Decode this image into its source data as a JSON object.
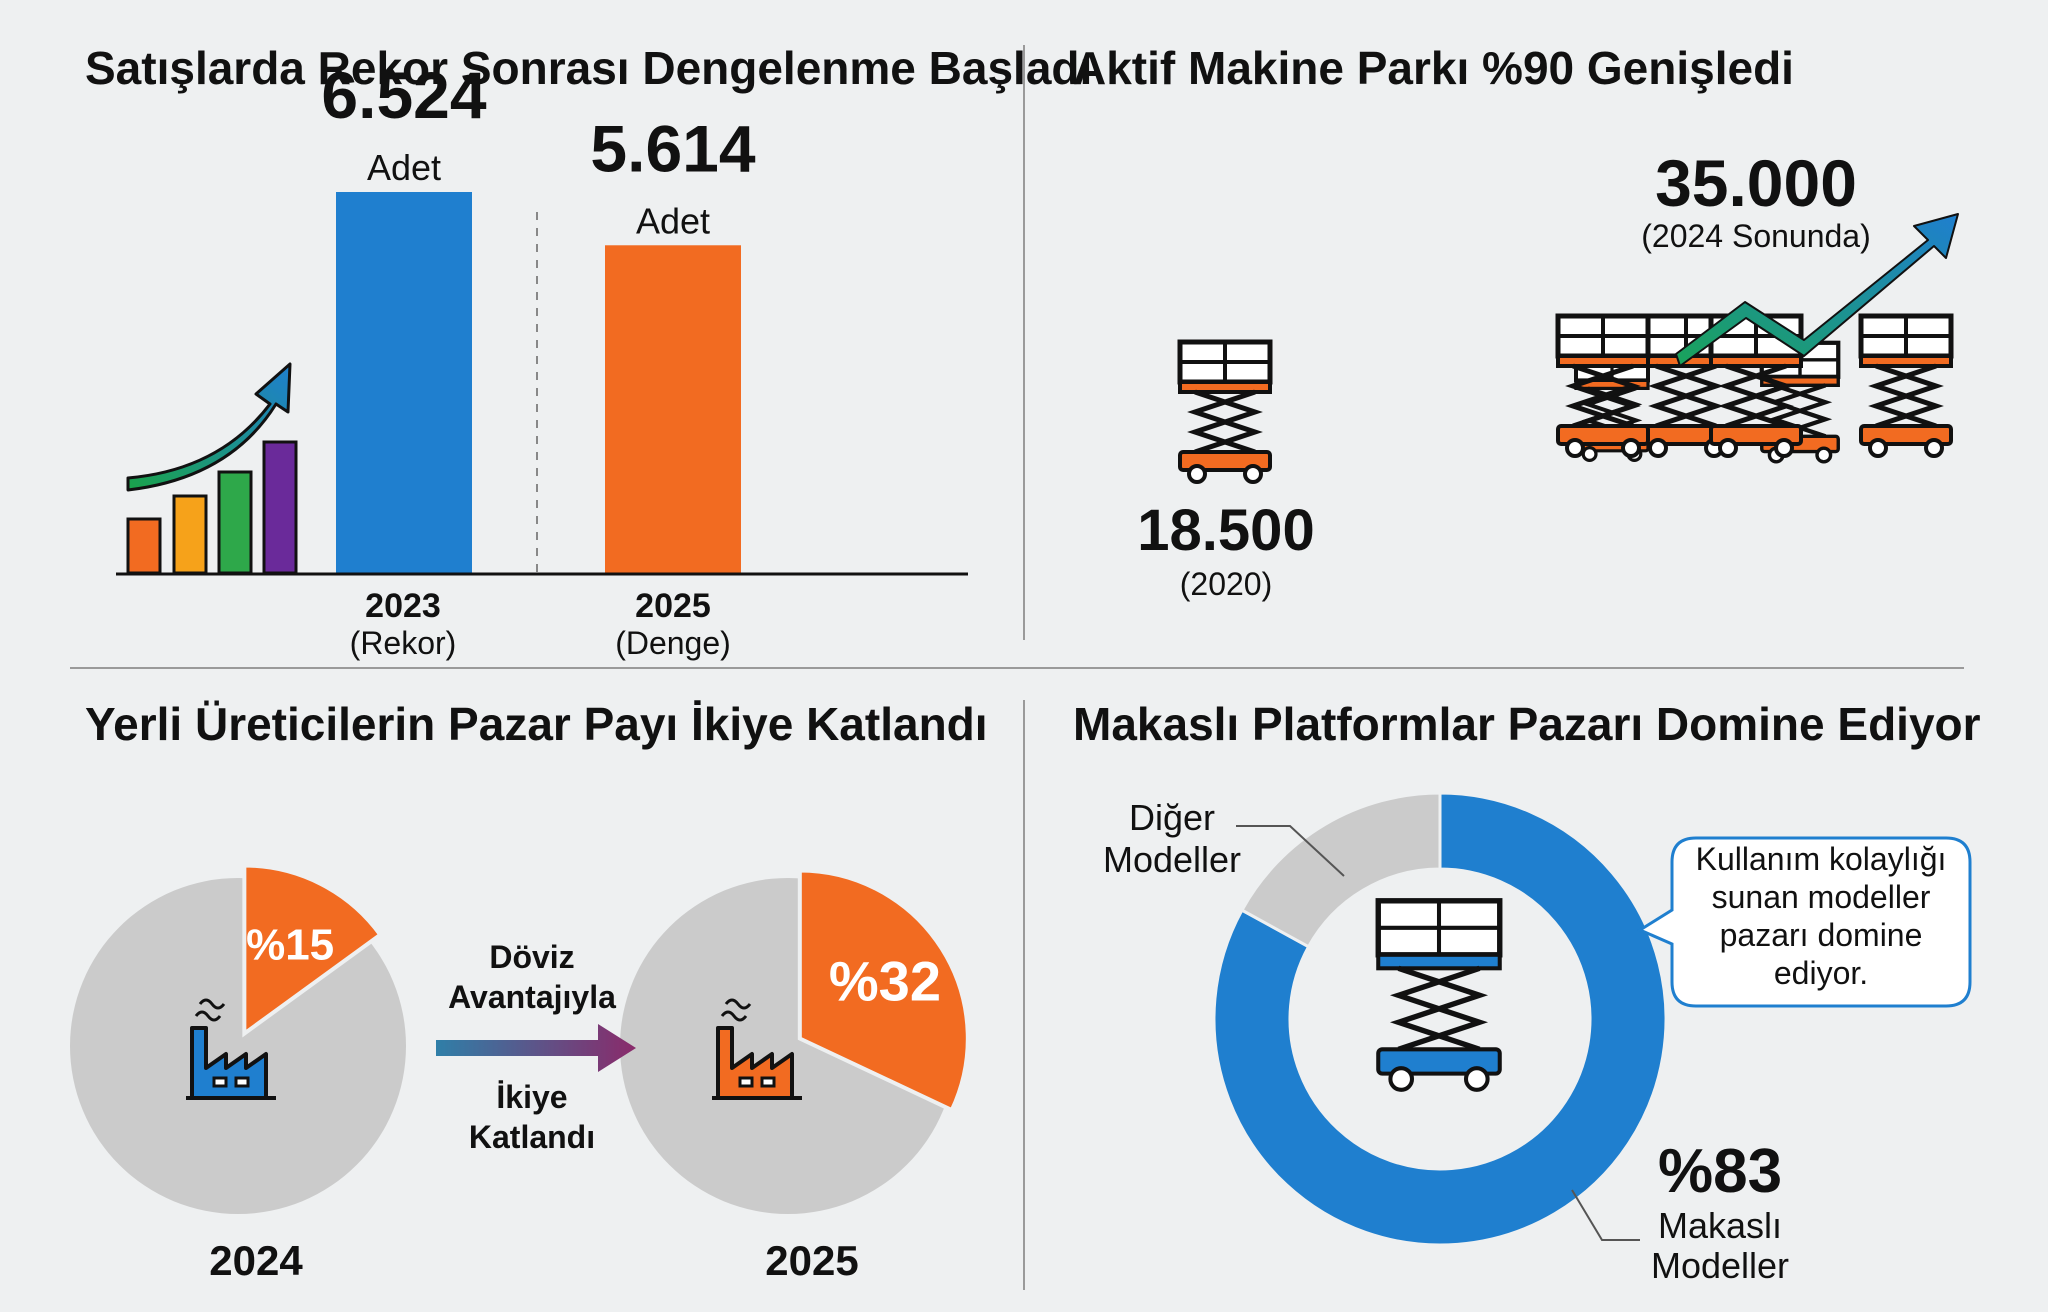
{
  "colors": {
    "blue": "#1f7fcf",
    "orange": "#f26b21",
    "gray": "#cbcbcb",
    "teal": "#1aa39a",
    "green": "#2ea84a",
    "purple": "#6a2a9a",
    "red": "#e84b1a"
  },
  "chart_data": [
    {
      "type": "bar",
      "title": "Satışlarda Rekor Sonrası Dengelenme Başladı",
      "categories": [
        "2023",
        "2025"
      ],
      "category_notes": [
        "(Rekor)",
        "(Denge)"
      ],
      "values": [
        6524,
        5614
      ],
      "value_labels": [
        "6.524",
        "5.614"
      ],
      "unit": "Adet",
      "ylim": [
        0,
        7000
      ]
    },
    {
      "type": "bar",
      "title": "Aktif Makine Parkı %90 Genişledi",
      "categories": [
        "(2020)",
        "(2024 Sonunda)"
      ],
      "values": [
        18500,
        35000
      ],
      "value_labels": [
        "18.500",
        "35.000"
      ]
    },
    {
      "type": "pie",
      "title": "Yerli Üreticilerin Pazar Payı İkiye Katlandı",
      "charts": [
        {
          "label": "2024",
          "slice_value": 15,
          "slice_label": "%15"
        },
        {
          "label": "2025",
          "slice_value": 32,
          "slice_label": "%32"
        }
      ],
      "arrow_top": [
        "Döviz",
        "Avantajıyla"
      ],
      "arrow_bottom": [
        "İkiye",
        "Katlandı"
      ]
    },
    {
      "type": "pie",
      "title": "Makaslı Platformlar Pazarı Domine Ediyor",
      "values": [
        83,
        17
      ],
      "main_label": "%83",
      "main_name": [
        "Makaslı",
        "Modeller"
      ],
      "other_name": [
        "Diğer",
        "Modeller"
      ],
      "callout": [
        "Kullanım kolaylığı",
        "sunan modeller",
        "pazarı domine",
        "ediyor."
      ]
    }
  ]
}
